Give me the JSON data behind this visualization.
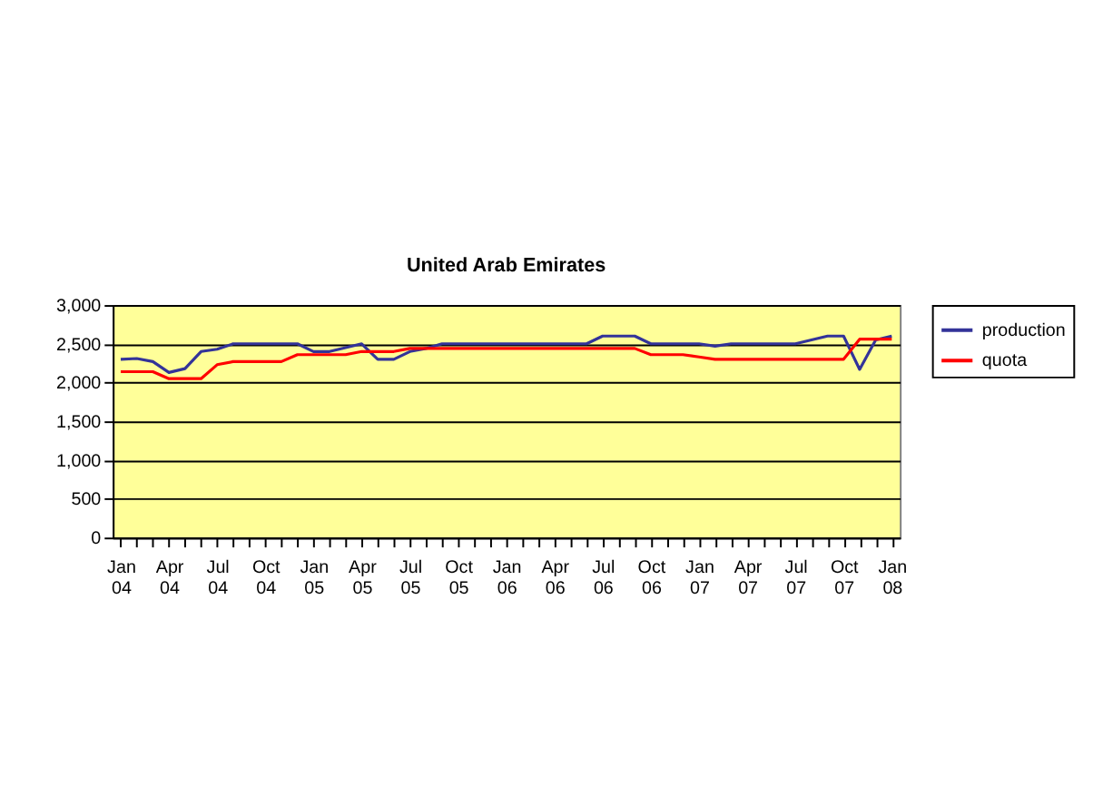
{
  "chart_data": {
    "type": "line",
    "title": "United Arab Emirates",
    "categories": [
      "Jan 04",
      null,
      null,
      "Apr 04",
      null,
      null,
      "Jul 04",
      null,
      null,
      "Oct 04",
      null,
      null,
      "Jan 05",
      null,
      null,
      "Apr 05",
      null,
      null,
      "Jul 05",
      null,
      null,
      "Oct 05",
      null,
      null,
      "Jan 06",
      null,
      null,
      "Apr 06",
      null,
      null,
      "Jul 06",
      null,
      null,
      "Oct 06",
      null,
      null,
      "Jan 07",
      null,
      null,
      "Apr 07",
      null,
      null,
      "Jul 07",
      null,
      null,
      "Oct 07",
      null,
      null,
      "Jan 08"
    ],
    "series": [
      {
        "name": "production",
        "color": "#333399",
        "values": [
          2300,
          2310,
          2270,
          2130,
          2180,
          2400,
          2430,
          2500,
          2500,
          2500,
          2500,
          2500,
          2400,
          2400,
          2450,
          2500,
          2300,
          2300,
          2400,
          2440,
          2500,
          2500,
          2500,
          2500,
          2500,
          2500,
          2500,
          2500,
          2500,
          2500,
          2600,
          2600,
          2600,
          2500,
          2500,
          2500,
          2500,
          2470,
          2500,
          2500,
          2500,
          2500,
          2500,
          2550,
          2600,
          2600,
          2170,
          2550,
          2600
        ]
      },
      {
        "name": "quota",
        "color": "#ff0000",
        "values": [
          2140,
          2140,
          2140,
          2050,
          2050,
          2050,
          2230,
          2270,
          2270,
          2270,
          2270,
          2360,
          2360,
          2360,
          2360,
          2400,
          2400,
          2400,
          2440,
          2440,
          2440,
          2440,
          2440,
          2440,
          2440,
          2440,
          2440,
          2440,
          2440,
          2440,
          2440,
          2440,
          2440,
          2360,
          2360,
          2360,
          2330,
          2300,
          2300,
          2300,
          2300,
          2300,
          2300,
          2300,
          2300,
          2300,
          2560,
          2560,
          2560
        ]
      }
    ],
    "ylim": [
      0,
      3000
    ],
    "yticks": [
      0,
      500,
      {
        "value": 1000,
        "label": "1,000"
      },
      {
        "value": 1500,
        "label": "1,500"
      },
      {
        "value": 2000,
        "label": "2,000"
      },
      {
        "value": 2500,
        "label": "2,500"
      },
      {
        "value": 3000,
        "label": "3,000"
      }
    ],
    "grid": "y",
    "legend": "right",
    "marker": "none",
    "line_style": "solid"
  }
}
